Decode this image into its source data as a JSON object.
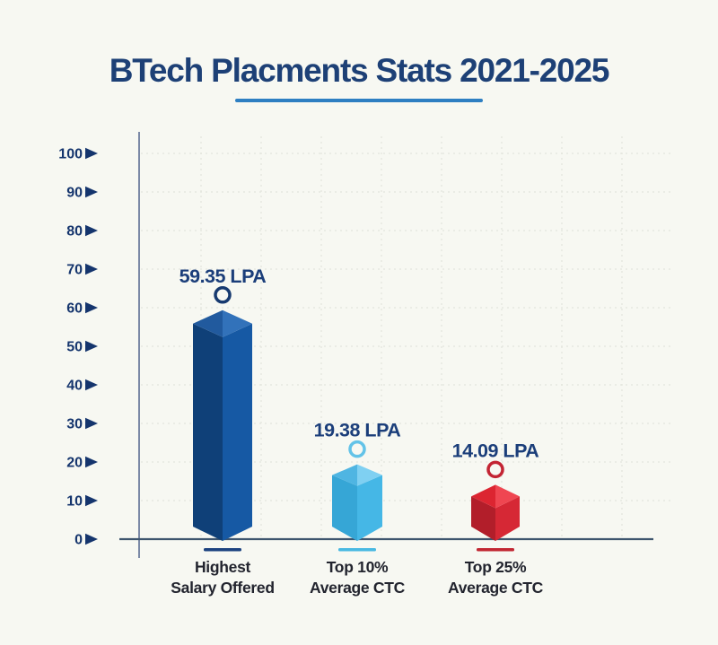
{
  "title": {
    "text": "BTech Placments Stats 2021-2025"
  },
  "colors": {
    "background": "#f7f8f2",
    "title": "#1d4076",
    "title_underline": "#2e7fc2",
    "axis_text": "#15356d",
    "axis_line": "#3d556e",
    "axis_line_vertical": "#5a6d92",
    "gridline": "#e3e5dd",
    "value_text": "#1b3e7a",
    "category_text": "#22242e"
  },
  "chart_data": {
    "type": "bar",
    "style": "3d-isometric-bars",
    "title": "BTech Placments Stats 2021-2025",
    "xlabel": "",
    "ylabel": "",
    "unit": "LPA",
    "ylim": [
      0,
      100
    ],
    "yticks": [
      0,
      10,
      20,
      30,
      40,
      50,
      60,
      70,
      80,
      90,
      100
    ],
    "grid": "faint-dotted-horizontal-and-vertical",
    "legend_position": "none",
    "categories": [
      "Highest Salary Offered",
      "Top 10% Average CTC",
      "Top 25% Average CTC"
    ],
    "values": [
      59.35,
      19.38,
      14.09
    ],
    "bars": [
      {
        "category_lines": [
          "Highest",
          "Salary Offered"
        ],
        "value": 59.35,
        "value_label": "59.35 LPA",
        "color_left": "#0f4078",
        "color_right": "#1659a4",
        "color_top_dark": "#215a9e",
        "color_top_light": "#3272ba",
        "ring_color": "#173a70",
        "dash_color": "#1d4380"
      },
      {
        "category_lines": [
          "Top 10%",
          "Average CTC"
        ],
        "value": 19.38,
        "value_label": "19.38 LPA",
        "color_left": "#36a6d6",
        "color_right": "#45b7e6",
        "color_top_dark": "#4fb5e2",
        "color_top_light": "#7fd0f2",
        "ring_color": "#63c3e8",
        "dash_color": "#49b9e2"
      },
      {
        "category_lines": [
          "Top 25%",
          "Average CTC"
        ],
        "value": 14.09,
        "value_label": "14.09 LPA",
        "color_left": "#b21e2a",
        "color_right": "#d62835",
        "color_top_dark": "#dc2531",
        "color_top_light": "#ef4651",
        "ring_color": "#c32433",
        "dash_color": "#c22733"
      }
    ]
  }
}
